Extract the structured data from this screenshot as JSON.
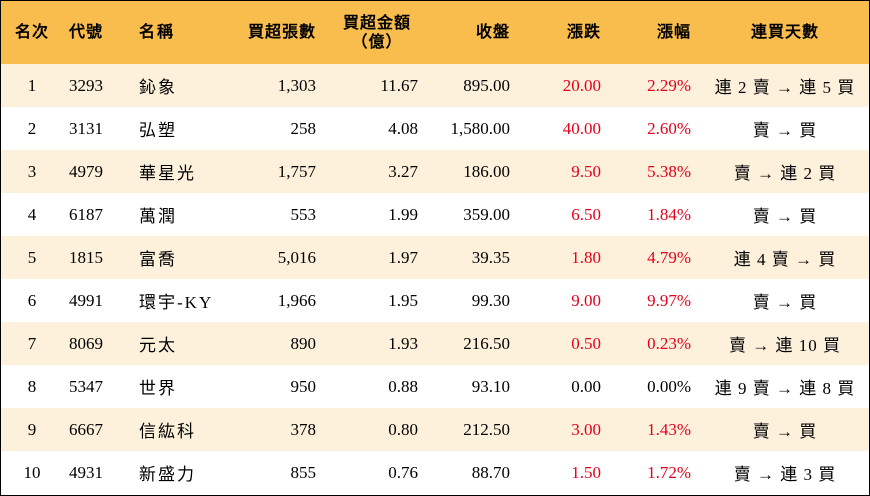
{
  "headers": {
    "rank": "名次",
    "code": "代號",
    "name": "名稱",
    "net_lots": "買超張數",
    "amount_line1": "買超金額",
    "amount_line2": "（億）",
    "close": "收盤",
    "change": "漲跌",
    "pct": "漲幅",
    "streak": "連買天數"
  },
  "colors": {
    "header_bg": "#f9bd4e",
    "stripe_bg": "#fdf1dc",
    "up": "#e3001b"
  },
  "rows": [
    {
      "rank": "1",
      "code": "3293",
      "name": "鈊象",
      "net_lots": "1,303",
      "amount": "11.67",
      "close": "895.00",
      "change": "20.00",
      "pct": "2.29%",
      "streak": "連 2 賣 → 連 5 買",
      "dir": "up"
    },
    {
      "rank": "2",
      "code": "3131",
      "name": "弘塑",
      "net_lots": "258",
      "amount": "4.08",
      "close": "1,580.00",
      "change": "40.00",
      "pct": "2.60%",
      "streak": "賣 → 買",
      "dir": "up"
    },
    {
      "rank": "3",
      "code": "4979",
      "name": "華星光",
      "net_lots": "1,757",
      "amount": "3.27",
      "close": "186.00",
      "change": "9.50",
      "pct": "5.38%",
      "streak": "賣 → 連 2 買",
      "dir": "up"
    },
    {
      "rank": "4",
      "code": "6187",
      "name": "萬潤",
      "net_lots": "553",
      "amount": "1.99",
      "close": "359.00",
      "change": "6.50",
      "pct": "1.84%",
      "streak": "賣 → 買",
      "dir": "up"
    },
    {
      "rank": "5",
      "code": "1815",
      "name": "富喬",
      "net_lots": "5,016",
      "amount": "1.97",
      "close": "39.35",
      "change": "1.80",
      "pct": "4.79%",
      "streak": "連 4 賣 → 買",
      "dir": "up"
    },
    {
      "rank": "6",
      "code": "4991",
      "name": "環宇-KY",
      "net_lots": "1,966",
      "amount": "1.95",
      "close": "99.30",
      "change": "9.00",
      "pct": "9.97%",
      "streak": "賣 → 買",
      "dir": "up"
    },
    {
      "rank": "7",
      "code": "8069",
      "name": "元太",
      "net_lots": "890",
      "amount": "1.93",
      "close": "216.50",
      "change": "0.50",
      "pct": "0.23%",
      "streak": "賣 → 連 10 買",
      "dir": "up"
    },
    {
      "rank": "8",
      "code": "5347",
      "name": "世界",
      "net_lots": "950",
      "amount": "0.88",
      "close": "93.10",
      "change": "0.00",
      "pct": "0.00%",
      "streak": "連 9 賣 → 連 8 買",
      "dir": "flat"
    },
    {
      "rank": "9",
      "code": "6667",
      "name": "信紘科",
      "net_lots": "378",
      "amount": "0.80",
      "close": "212.50",
      "change": "3.00",
      "pct": "1.43%",
      "streak": "賣 → 買",
      "dir": "up"
    },
    {
      "rank": "10",
      "code": "4931",
      "name": "新盛力",
      "net_lots": "855",
      "amount": "0.76",
      "close": "88.70",
      "change": "1.50",
      "pct": "1.72%",
      "streak": "賣 → 連 3 買",
      "dir": "up"
    }
  ]
}
